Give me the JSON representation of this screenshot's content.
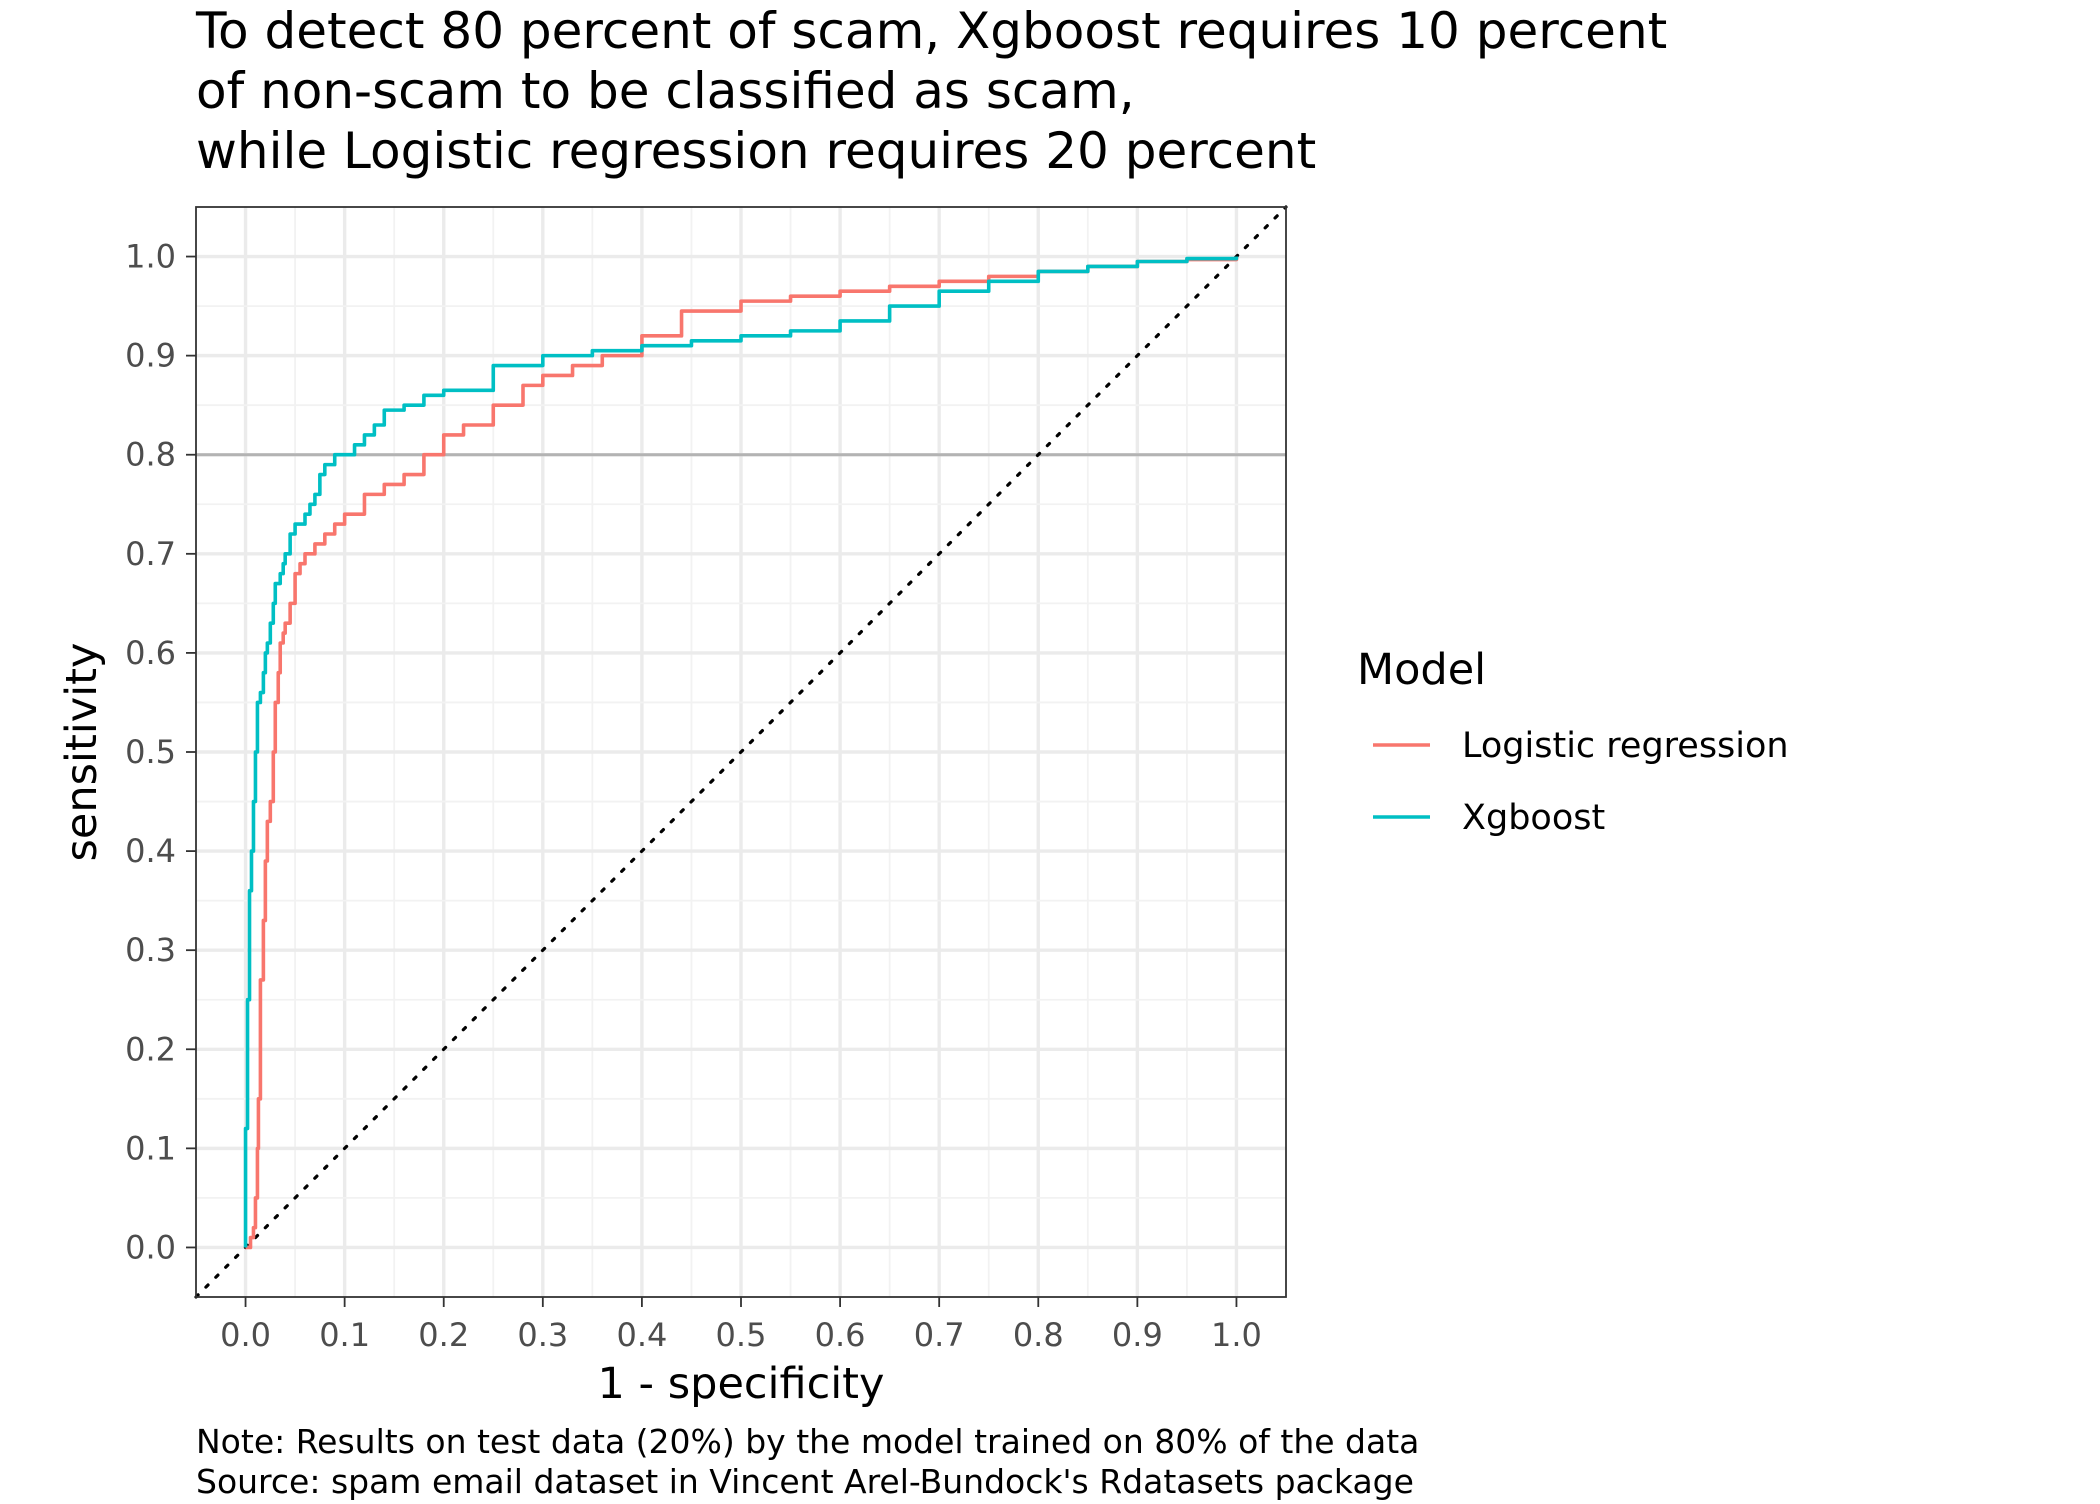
{
  "chart_data": {
    "type": "line",
    "title": [
      "To detect 80 percent of scam, Xgboost requires 10 percent",
      "of non-scam to be classified as scam,",
      "while Logistic regression requires 20 percent"
    ],
    "xlabel": "1 - specificity",
    "ylabel": "sensitivity",
    "xlim": [
      -0.05,
      1.05
    ],
    "ylim": [
      -0.05,
      1.05
    ],
    "x_ticks": [
      "0.0",
      "0.1",
      "0.2",
      "0.3",
      "0.4",
      "0.5",
      "0.6",
      "0.7",
      "0.8",
      "0.9",
      "1.0"
    ],
    "y_ticks": [
      "0.0",
      "0.1",
      "0.2",
      "0.3",
      "0.4",
      "0.5",
      "0.6",
      "0.7",
      "0.8",
      "0.9",
      "1.0"
    ],
    "grid": true,
    "legend": {
      "title": "Model",
      "placement": "right"
    },
    "reference_lines": [
      {
        "type": "horizontal",
        "y": 0.8,
        "color": "#b3b3b3"
      },
      {
        "type": "diagonal",
        "from": [
          0,
          0
        ],
        "to": [
          1,
          1
        ],
        "style": "dotted",
        "color": "#000000"
      }
    ],
    "series": [
      {
        "name": "Logistic regression",
        "color": "#F8766D",
        "x": [
          0,
          0.005,
          0.008,
          0.01,
          0.012,
          0.013,
          0.015,
          0.018,
          0.02,
          0.022,
          0.025,
          0.028,
          0.03,
          0.033,
          0.035,
          0.038,
          0.04,
          0.043,
          0.045,
          0.05,
          0.055,
          0.06,
          0.065,
          0.07,
          0.08,
          0.09,
          0.1,
          0.12,
          0.14,
          0.16,
          0.18,
          0.2,
          0.22,
          0.25,
          0.28,
          0.3,
          0.33,
          0.36,
          0.4,
          0.44,
          0.5,
          0.55,
          0.6,
          0.65,
          0.7,
          0.75,
          0.8,
          0.85,
          0.9,
          0.95,
          1.0
        ],
        "y": [
          0,
          0.01,
          0.02,
          0.05,
          0.1,
          0.15,
          0.27,
          0.33,
          0.39,
          0.43,
          0.45,
          0.5,
          0.55,
          0.58,
          0.61,
          0.62,
          0.63,
          0.63,
          0.65,
          0.68,
          0.69,
          0.7,
          0.7,
          0.71,
          0.72,
          0.73,
          0.74,
          0.76,
          0.77,
          0.78,
          0.8,
          0.82,
          0.83,
          0.85,
          0.87,
          0.88,
          0.89,
          0.9,
          0.92,
          0.945,
          0.955,
          0.96,
          0.965,
          0.97,
          0.975,
          0.98,
          0.985,
          0.99,
          0.995,
          0.997,
          1.0
        ]
      },
      {
        "name": "Xgboost",
        "color": "#00BFC4",
        "x": [
          0,
          0.0,
          0.002,
          0.004,
          0.006,
          0.008,
          0.01,
          0.012,
          0.015,
          0.018,
          0.02,
          0.022,
          0.025,
          0.028,
          0.03,
          0.032,
          0.035,
          0.038,
          0.04,
          0.045,
          0.05,
          0.055,
          0.06,
          0.065,
          0.07,
          0.075,
          0.08,
          0.09,
          0.1,
          0.11,
          0.12,
          0.13,
          0.14,
          0.16,
          0.18,
          0.2,
          0.25,
          0.3,
          0.35,
          0.4,
          0.45,
          0.5,
          0.55,
          0.6,
          0.65,
          0.7,
          0.75,
          0.8,
          0.85,
          0.9,
          0.95,
          1.0
        ],
        "y": [
          0,
          0.12,
          0.25,
          0.36,
          0.4,
          0.45,
          0.5,
          0.55,
          0.56,
          0.58,
          0.6,
          0.61,
          0.63,
          0.65,
          0.67,
          0.67,
          0.68,
          0.69,
          0.7,
          0.72,
          0.73,
          0.73,
          0.74,
          0.75,
          0.76,
          0.78,
          0.79,
          0.8,
          0.8,
          0.81,
          0.82,
          0.83,
          0.845,
          0.85,
          0.86,
          0.865,
          0.89,
          0.9,
          0.905,
          0.91,
          0.915,
          0.92,
          0.925,
          0.935,
          0.95,
          0.965,
          0.975,
          0.985,
          0.99,
          0.995,
          0.998,
          1.0
        ]
      }
    ],
    "caption": [
      "Note: Results on test data (20%) by the model trained on 80% of the data",
      "Source: spam email dataset in Vincent Arel-Bundock's Rdatasets package"
    ]
  }
}
